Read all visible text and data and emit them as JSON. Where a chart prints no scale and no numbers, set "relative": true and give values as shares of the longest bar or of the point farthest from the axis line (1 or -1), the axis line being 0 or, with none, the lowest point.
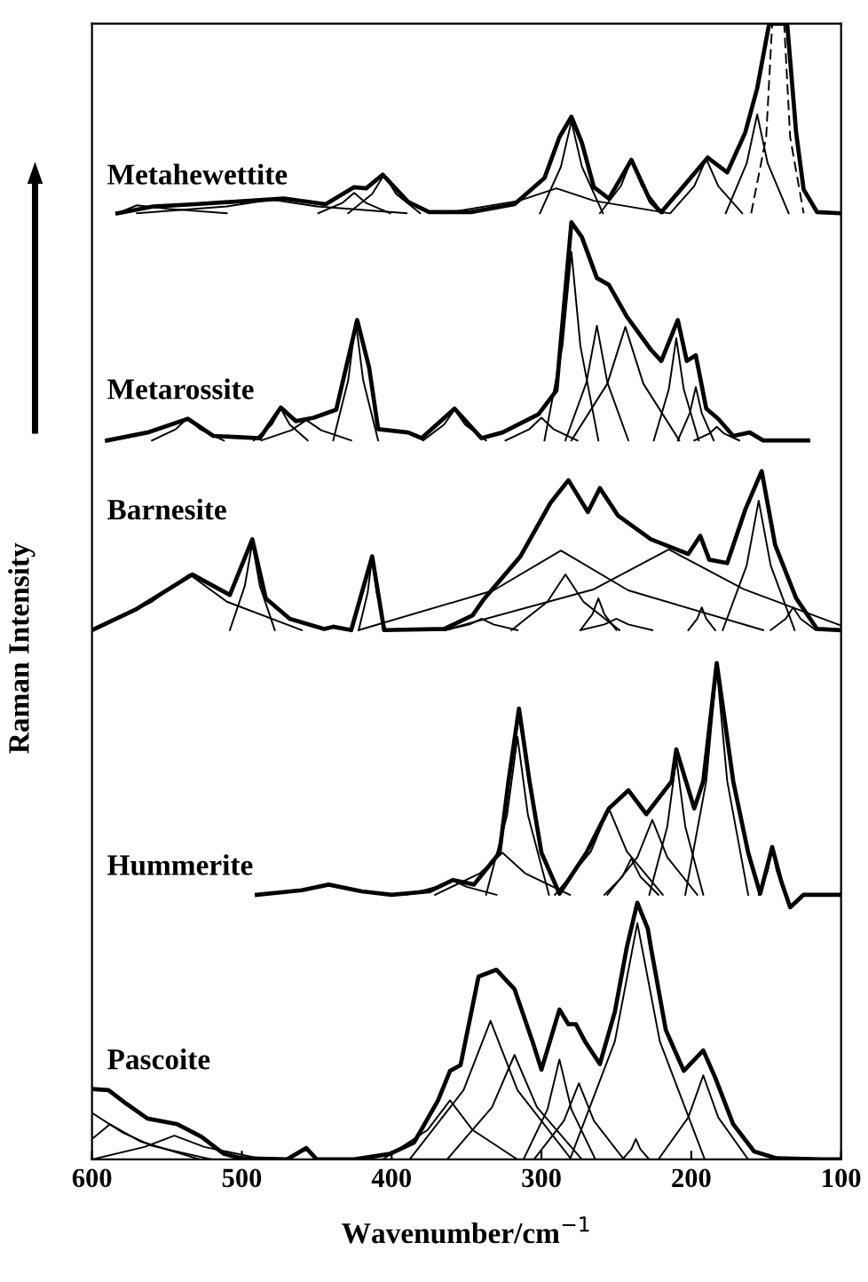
{
  "chart_data": {
    "type": "line",
    "relative": true,
    "xlabel": "Wavenumber/cm$^{−1}$",
    "ylabel": "Raman Intensity",
    "xlim": [
      600,
      100
    ],
    "xticks": [
      600,
      500,
      400,
      300,
      200,
      100
    ],
    "tick_labels": "x",
    "grid": false,
    "legend": false,
    "line_style": "solid",
    "marker": "none",
    "series": [
      {
        "name": "Metahewettite",
        "color": "#000000",
        "x": [
          583,
          559,
          531,
          472,
          444,
          425,
          417,
          406,
          389,
          375,
          347,
          318,
          298,
          288,
          280,
          273,
          265,
          255,
          240,
          227,
          220,
          207,
          189,
          176,
          164,
          156,
          148,
          136,
          130,
          125,
          116,
          100
        ],
        "values": [
          0.833,
          0.839,
          0.841,
          0.846,
          0.841,
          0.856,
          0.855,
          0.867,
          0.843,
          0.834,
          0.834,
          0.841,
          0.864,
          0.9,
          0.918,
          0.895,
          0.856,
          0.846,
          0.88,
          0.843,
          0.834,
          0.854,
          0.882,
          0.869,
          0.904,
          0.943,
          1.0,
          1.0,
          0.904,
          0.854,
          0.834,
          0.833
        ]
      },
      {
        "name": "Metarossite",
        "color": "#000000",
        "x": [
          590,
          563,
          536,
          519,
          488,
          474,
          464,
          452,
          437,
          423,
          415,
          409,
          389,
          380,
          358,
          340,
          326,
          302,
          290,
          280,
          273,
          263,
          255,
          243,
          227,
          220,
          209,
          203,
          197,
          190,
          182,
          172,
          161,
          152,
          122
        ],
        "values": [
          0.633,
          0.64,
          0.652,
          0.637,
          0.635,
          0.662,
          0.65,
          0.653,
          0.66,
          0.739,
          0.697,
          0.643,
          0.64,
          0.635,
          0.661,
          0.635,
          0.64,
          0.656,
          0.677,
          0.825,
          0.812,
          0.776,
          0.77,
          0.742,
          0.713,
          0.703,
          0.739,
          0.703,
          0.708,
          0.661,
          0.652,
          0.637,
          0.64,
          0.633,
          0.633
        ]
      },
      {
        "name": "Barnesite",
        "color": "#000000",
        "x": [
          600,
          571,
          533,
          508,
          493,
          484,
          468,
          445,
          439,
          427,
          413,
          405,
          365,
          346,
          338,
          314,
          294,
          282,
          269,
          261,
          249,
          227,
          202,
          194,
          188,
          176,
          164,
          153,
          144,
          130,
          116,
          100
        ],
        "values": [
          0.466,
          0.484,
          0.515,
          0.497,
          0.546,
          0.494,
          0.476,
          0.467,
          0.469,
          0.466,
          0.531,
          0.466,
          0.467,
          0.479,
          0.494,
          0.531,
          0.578,
          0.598,
          0.57,
          0.591,
          0.567,
          0.546,
          0.533,
          0.549,
          0.528,
          0.525,
          0.572,
          0.606,
          0.541,
          0.494,
          0.467,
          0.466
        ]
      },
      {
        "name": "Hummerite",
        "color": "#000000",
        "x": [
          490,
          460,
          442,
          420,
          400,
          375,
          359,
          345,
          328,
          322,
          315,
          308,
          300,
          288,
          270,
          255,
          242,
          230,
          213,
          210,
          198,
          192,
          183,
          172,
          162,
          154,
          146,
          140,
          134,
          125,
          100
        ],
        "values": [
          0.233,
          0.237,
          0.242,
          0.236,
          0.233,
          0.236,
          0.246,
          0.242,
          0.27,
          0.333,
          0.397,
          0.333,
          0.27,
          0.234,
          0.27,
          0.309,
          0.325,
          0.304,
          0.333,
          0.361,
          0.309,
          0.333,
          0.437,
          0.333,
          0.27,
          0.234,
          0.275,
          0.245,
          0.222,
          0.233,
          0.233
        ]
      },
      {
        "name": "Pascoite",
        "color": "#000000",
        "x": [
          600,
          589,
          577,
          563,
          543,
          527,
          512,
          500,
          470,
          457,
          450,
          425,
          401,
          385,
          369,
          361,
          354,
          342,
          330,
          318,
          306,
          300,
          288,
          282,
          277,
          271,
          261,
          251,
          243,
          236,
          229,
          227,
          217,
          205,
          192,
          184,
          172,
          158,
          143,
          113,
          100
        ],
        "values": [
          0.062,
          0.061,
          0.049,
          0.036,
          0.031,
          0.02,
          0.005,
          0.001,
          0.0,
          0.01,
          0.0,
          0.0,
          0.005,
          0.015,
          0.052,
          0.078,
          0.083,
          0.161,
          0.167,
          0.15,
          0.104,
          0.079,
          0.132,
          0.119,
          0.119,
          0.104,
          0.084,
          0.13,
          0.187,
          0.226,
          0.203,
          0.187,
          0.114,
          0.078,
          0.096,
          0.072,
          0.031,
          0.007,
          0.001,
          0.0,
          0.0
        ]
      },
      {
        "color": "#000000",
        "x": [
          583,
          570,
          550,
          510
        ],
        "values": [
          0.833,
          0.84,
          0.837,
          0.833
        ]
      },
      {
        "color": "#000000",
        "x": [
          570,
          510,
          480,
          450,
          390
        ],
        "values": [
          0.833,
          0.839,
          0.845,
          0.839,
          0.833
        ]
      },
      {
        "color": "#000000",
        "x": [
          449,
          433,
          425,
          417,
          401
        ],
        "values": [
          0.833,
          0.842,
          0.851,
          0.842,
          0.833
        ]
      },
      {
        "color": "#000000",
        "x": [
          429,
          413,
          405,
          397,
          381
        ],
        "values": [
          0.833,
          0.85,
          0.867,
          0.85,
          0.833
        ]
      },
      {
        "color": "#000000",
        "x": [
          365,
          315,
          290,
          265,
          215
        ],
        "values": [
          0.833,
          0.844,
          0.855,
          0.844,
          0.833
        ]
      },
      {
        "color": "#000000",
        "x": [
          301,
          287,
          280,
          273,
          259
        ],
        "values": [
          0.833,
          0.874,
          0.914,
          0.874,
          0.833
        ]
      },
      {
        "color": "#000000",
        "x": [
          261,
          247,
          240,
          233,
          219
        ],
        "values": [
          0.833,
          0.857,
          0.88,
          0.857,
          0.833
        ]
      },
      {
        "color": "#000000",
        "x": [
          214,
          198,
          190,
          182,
          166
        ],
        "values": [
          0.833,
          0.857,
          0.881,
          0.857,
          0.833
        ]
      },
      {
        "color": "#000000",
        "x": [
          177,
          163,
          156,
          149,
          135
        ],
        "values": [
          0.833,
          0.877,
          0.92,
          0.877,
          0.833
        ]
      },
      {
        "color": "#000000",
        "line_style": "dashed",
        "x": [
          160,
          150,
          146,
          138,
          134,
          125
        ],
        "values": [
          0.833,
          0.9,
          1.0,
          1.0,
          0.9,
          0.833
        ]
      },
      {
        "color": "#000000",
        "x": [
          560,
          544,
          536,
          528,
          512
        ],
        "values": [
          0.633,
          0.643,
          0.653,
          0.643,
          0.633
        ]
      },
      {
        "color": "#000000",
        "x": [
          492,
          480,
          474,
          468,
          456
        ],
        "values": [
          0.633,
          0.647,
          0.661,
          0.647,
          0.633
        ]
      },
      {
        "color": "#000000",
        "x": [
          487,
          467,
          457,
          447,
          427
        ],
        "values": [
          0.633,
          0.642,
          0.651,
          0.642,
          0.633
        ]
      },
      {
        "color": "#000000",
        "x": [
          439,
          429,
          424,
          419,
          409
        ],
        "values": [
          0.633,
          0.686,
          0.738,
          0.686,
          0.633
        ]
      },
      {
        "color": "#000000",
        "x": [
          379,
          365,
          358,
          351,
          337
        ],
        "values": [
          0.633,
          0.647,
          0.66,
          0.647,
          0.633
        ]
      },
      {
        "color": "#000000",
        "x": [
          324,
          308,
          300,
          292,
          276
        ],
        "values": [
          0.633,
          0.643,
          0.653,
          0.643,
          0.633
        ]
      },
      {
        "color": "#000000",
        "x": [
          298,
          286,
          280,
          274,
          262
        ],
        "values": [
          0.633,
          0.716,
          0.799,
          0.716,
          0.633
        ]
      },
      {
        "color": "#000000",
        "x": [
          284,
          270,
          263,
          256,
          242
        ],
        "values": [
          0.633,
          0.684,
          0.734,
          0.684,
          0.633
        ]
      },
      {
        "color": "#000000",
        "x": [
          280,
          256,
          244,
          232,
          208
        ],
        "values": [
          0.633,
          0.683,
          0.733,
          0.683,
          0.633
        ]
      },
      {
        "color": "#000000",
        "x": [
          225,
          215,
          210,
          205,
          195
        ],
        "values": [
          0.633,
          0.678,
          0.723,
          0.678,
          0.633
        ]
      },
      {
        "color": "#000000",
        "x": [
          209,
          201,
          197,
          193,
          185
        ],
        "values": [
          0.633,
          0.657,
          0.68,
          0.657,
          0.633
        ]
      },
      {
        "color": "#000000",
        "x": [
          198,
          188,
          183,
          178,
          168
        ],
        "values": [
          0.633,
          0.639,
          0.645,
          0.639,
          0.633
        ]
      },
      {
        "color": "#000000",
        "x": [
          600,
          560,
          535,
          510,
          460
        ],
        "values": [
          0.466,
          0.491,
          0.515,
          0.491,
          0.466
        ]
      },
      {
        "color": "#000000",
        "x": [
          508,
          498,
          493,
          488,
          478
        ],
        "values": [
          0.466,
          0.505,
          0.543,
          0.505,
          0.466
        ]
      },
      {
        "color": "#000000",
        "x": [
          422,
          416,
          413,
          410,
          404
        ],
        "values": [
          0.466,
          0.499,
          0.531,
          0.499,
          0.466
        ]
      },
      {
        "color": "#000000",
        "x": [
          364,
          348,
          340,
          332,
          316
        ],
        "values": [
          0.466,
          0.471,
          0.476,
          0.471,
          0.466
        ]
      },
      {
        "color": "#000000",
        "x": [
          422,
          332,
          287,
          242,
          152
        ],
        "values": [
          0.466,
          0.501,
          0.536,
          0.501,
          0.466
        ]
      },
      {
        "color": "#000000",
        "x": [
          320,
          296,
          284,
          272,
          248
        ],
        "values": [
          0.466,
          0.491,
          0.515,
          0.491,
          0.466
        ]
      },
      {
        "color": "#000000",
        "x": [
          274,
          266,
          262,
          258,
          250
        ],
        "values": [
          0.466,
          0.48,
          0.494,
          0.48,
          0.466
        ]
      },
      {
        "color": "#000000",
        "x": [
          274,
          258,
          250,
          242,
          226
        ],
        "values": [
          0.466,
          0.471,
          0.476,
          0.471,
          0.466
        ]
      },
      {
        "color": "#000000",
        "x": [
          365,
          265,
          215,
          165,
          100
        ],
        "values": [
          0.466,
          0.502,
          0.537,
          0.502,
          0.47
        ]
      },
      {
        "color": "#000000",
        "x": [
          202,
          196,
          193,
          190,
          184
        ],
        "values": [
          0.466,
          0.476,
          0.486,
          0.476,
          0.466
        ]
      },
      {
        "color": "#000000",
        "x": [
          179,
          163,
          155,
          147,
          131
        ],
        "values": [
          0.466,
          0.523,
          0.58,
          0.523,
          0.466
        ]
      },
      {
        "color": "#000000",
        "x": [
          147,
          137,
          132,
          127,
          117
        ],
        "values": [
          0.466,
          0.476,
          0.486,
          0.476,
          0.466
        ]
      },
      {
        "color": "#000000",
        "x": [
          390,
          370,
          360,
          350,
          330
        ],
        "values": [
          0.233,
          0.24,
          0.246,
          0.24,
          0.233
        ]
      },
      {
        "color": "#000000",
        "x": [
          371,
          341,
          326,
          311,
          281
        ],
        "values": [
          0.233,
          0.252,
          0.27,
          0.252,
          0.233
        ]
      },
      {
        "color": "#000000",
        "x": [
          337,
          323,
          316,
          309,
          295
        ],
        "values": [
          0.233,
          0.303,
          0.372,
          0.303,
          0.233
        ]
      },
      {
        "color": "#000000",
        "x": [
          291,
          267,
          255,
          243,
          219
        ],
        "values": [
          0.233,
          0.271,
          0.309,
          0.271,
          0.233
        ]
      },
      {
        "color": "#000000",
        "x": [
          258,
          246,
          240,
          234,
          222
        ],
        "values": [
          0.233,
          0.249,
          0.265,
          0.249,
          0.233
        ]
      },
      {
        "color": "#000000",
        "x": [
          256,
          236,
          226,
          216,
          196
        ],
        "values": [
          0.233,
          0.266,
          0.299,
          0.266,
          0.233
        ]
      },
      {
        "color": "#000000",
        "x": [
          228,
          216,
          210,
          204,
          192
        ],
        "values": [
          0.233,
          0.293,
          0.353,
          0.293,
          0.233
        ]
      },
      {
        "color": "#000000",
        "x": [
          204,
          190,
          183,
          176,
          162
        ],
        "values": [
          0.233,
          0.333,
          0.433,
          0.333,
          0.233
        ]
      },
      {
        "color": "#000000",
        "x": [
          155,
          149,
          146,
          143,
          137
        ],
        "values": [
          0.233,
          0.254,
          0.275,
          0.254,
          0.233
        ]
      },
      {
        "color": "#000000",
        "x": [
          406,
          376,
          361,
          346,
          316
        ],
        "values": [
          0.0,
          0.026,
          0.052,
          0.026,
          0.0
        ]
      },
      {
        "color": "#000000",
        "x": [
          388,
          352,
          334,
          316,
          280
        ],
        "values": [
          0.0,
          0.061,
          0.122,
          0.061,
          0.0
        ]
      },
      {
        "color": "#000000",
        "x": [
          363,
          333,
          318,
          303,
          273
        ],
        "values": [
          0.0,
          0.046,
          0.092,
          0.046,
          0.0
        ]
      },
      {
        "color": "#000000",
        "x": [
          312,
          296,
          288,
          280,
          264
        ],
        "values": [
          0.0,
          0.044,
          0.088,
          0.044,
          0.0
        ]
      },
      {
        "color": "#000000",
        "x": [
          305,
          285,
          275,
          265,
          245
        ],
        "values": [
          0.0,
          0.034,
          0.067,
          0.034,
          0.0
        ]
      },
      {
        "color": "#000000",
        "x": [
          281,
          251,
          236,
          221,
          191
        ],
        "values": [
          0.0,
          0.104,
          0.208,
          0.104,
          0.0
        ]
      },
      {
        "color": "#000000",
        "x": [
          246,
          240,
          237,
          234,
          228
        ],
        "values": [
          0.0,
          0.009,
          0.018,
          0.009,
          0.0
        ]
      },
      {
        "color": "#000000",
        "x": [
          222,
          202,
          192,
          182,
          162
        ],
        "values": [
          0.0,
          0.037,
          0.074,
          0.037,
          0.0
        ]
      },
      {
        "color": "#000000",
        "x": [
          600,
          588,
          568,
          528
        ],
        "values": [
          0.018,
          0.031,
          0.016,
          0.0
        ]
      },
      {
        "color": "#000000",
        "x": [
          600,
          565,
          545,
          525,
          485
        ],
        "values": [
          0.0,
          0.011,
          0.021,
          0.011,
          0.0
        ]
      },
      {
        "color": "#000000",
        "x": [
          600,
          580,
          560,
          520
        ],
        "values": [
          0.041,
          0.024,
          0.012,
          0.0
        ]
      }
    ]
  }
}
